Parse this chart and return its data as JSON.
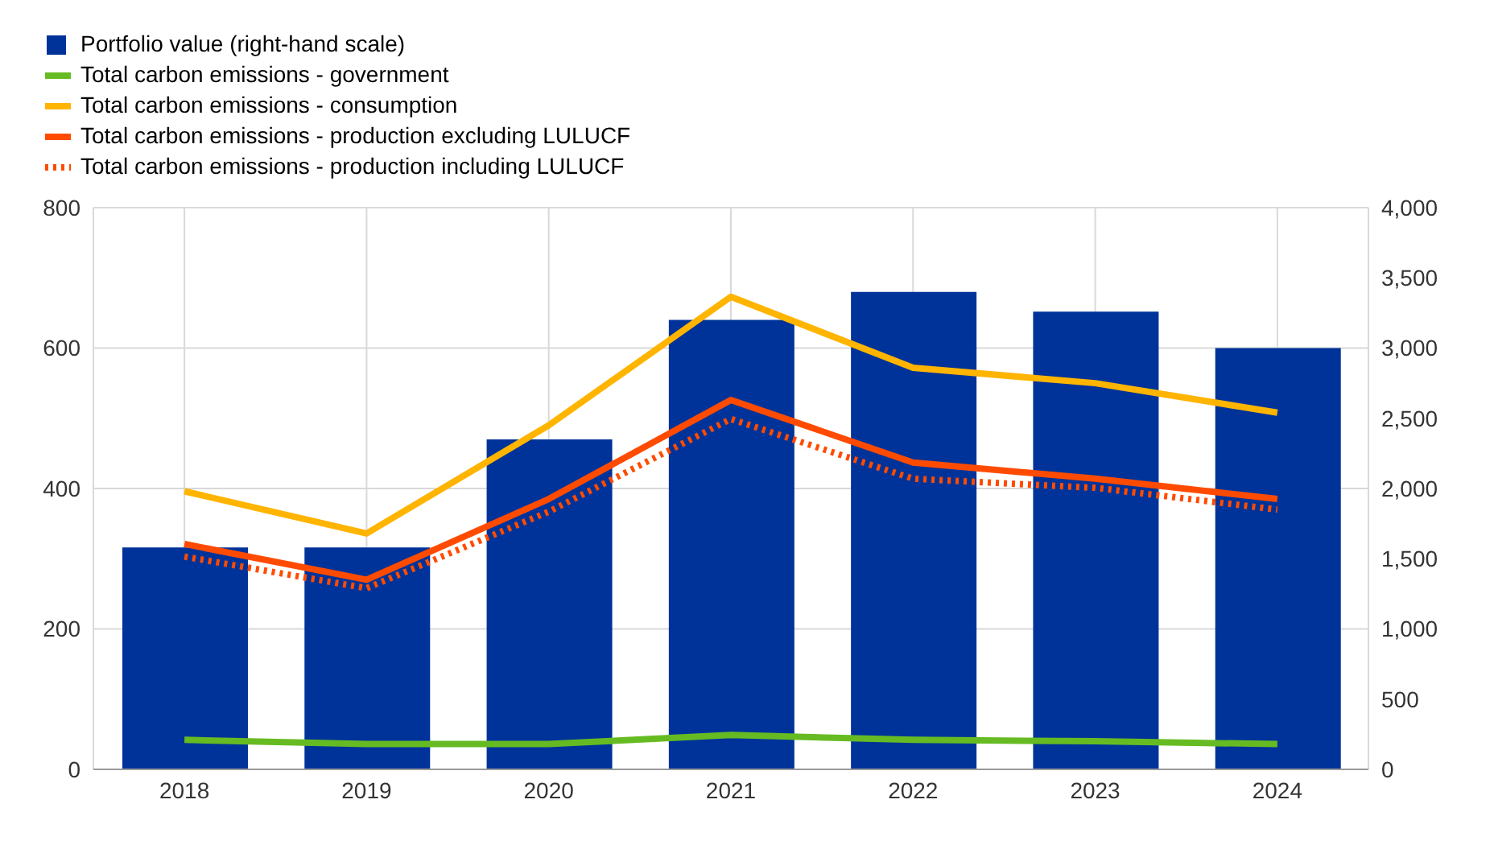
{
  "chart_data": {
    "type": "line",
    "categories": [
      "2018",
      "2019",
      "2020",
      "2021",
      "2022",
      "2023",
      "2024"
    ],
    "series": [
      {
        "name": "Portfolio value (right-hand scale)",
        "type": "bar",
        "axis": "y2",
        "color": "#003399",
        "values": [
          1580,
          1580,
          2350,
          3200,
          3400,
          3260,
          3000
        ]
      },
      {
        "name": "Total carbon emissions - government",
        "color": "#66bb22",
        "values": [
          42,
          36,
          36,
          49,
          42,
          40,
          36
        ]
      },
      {
        "name": "Total carbon emissions - consumption",
        "color": "#ffb400",
        "values": [
          396,
          336,
          490,
          673,
          572,
          550,
          508
        ]
      },
      {
        "name": "Total carbon emissions - production excluding LULUCF",
        "color": "#ff4b00",
        "values": [
          321,
          270,
          385,
          526,
          437,
          414,
          385
        ]
      },
      {
        "name": "Total carbon emissions - production including LULUCF",
        "color": "#ff4b00",
        "line_style": "dotted",
        "values": [
          303,
          258,
          367,
          499,
          414,
          401,
          370
        ]
      }
    ],
    "ylim": [
      0,
      800
    ],
    "yticks": [
      0,
      200,
      400,
      600,
      800
    ],
    "y2lim": [
      0,
      4000
    ],
    "y2ticks": [
      {
        "value": 0,
        "label": "0"
      },
      {
        "value": 500,
        "label": "500"
      },
      {
        "value": 1000,
        "label": "1,000"
      },
      {
        "value": 1500,
        "label": "1,500"
      },
      {
        "value": 2000,
        "label": "2,000"
      },
      {
        "value": 2500,
        "label": "2,500"
      },
      {
        "value": 3000,
        "label": "3,000"
      },
      {
        "value": 3500,
        "label": "3,500"
      },
      {
        "value": 4000,
        "label": "4,000"
      }
    ],
    "grid": true,
    "legend": "top left",
    "marker": "none",
    "line_style": "solid"
  }
}
